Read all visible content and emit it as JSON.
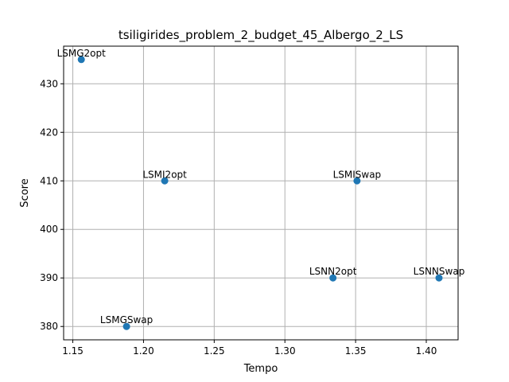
{
  "chart_data": {
    "type": "scatter",
    "title": "tsiligirides_problem_2_budget_45_Albergo_2_LS",
    "xlabel": "Tempo",
    "ylabel": "Score",
    "xlim": [
      1.1435,
      1.4225
    ],
    "ylim": [
      377.25,
      437.75
    ],
    "xticks": [
      1.15,
      1.2,
      1.25,
      1.3,
      1.35,
      1.4
    ],
    "xtick_labels": [
      "1.15",
      "1.20",
      "1.25",
      "1.30",
      "1.35",
      "1.40"
    ],
    "yticks": [
      380,
      390,
      400,
      410,
      420,
      430
    ],
    "ytick_labels": [
      "380",
      "390",
      "400",
      "410",
      "420",
      "430"
    ],
    "grid": true,
    "marker_color": "#1f77b4",
    "points": [
      {
        "label": "LSMG2opt",
        "x": 1.156,
        "y": 435
      },
      {
        "label": "LSMGSwap",
        "x": 1.188,
        "y": 380
      },
      {
        "label": "LSMI2opt",
        "x": 1.215,
        "y": 410
      },
      {
        "label": "LSNN2opt",
        "x": 1.334,
        "y": 390
      },
      {
        "label": "LSMISwap",
        "x": 1.351,
        "y": 410
      },
      {
        "label": "LSNNSwap",
        "x": 1.409,
        "y": 390
      }
    ]
  }
}
